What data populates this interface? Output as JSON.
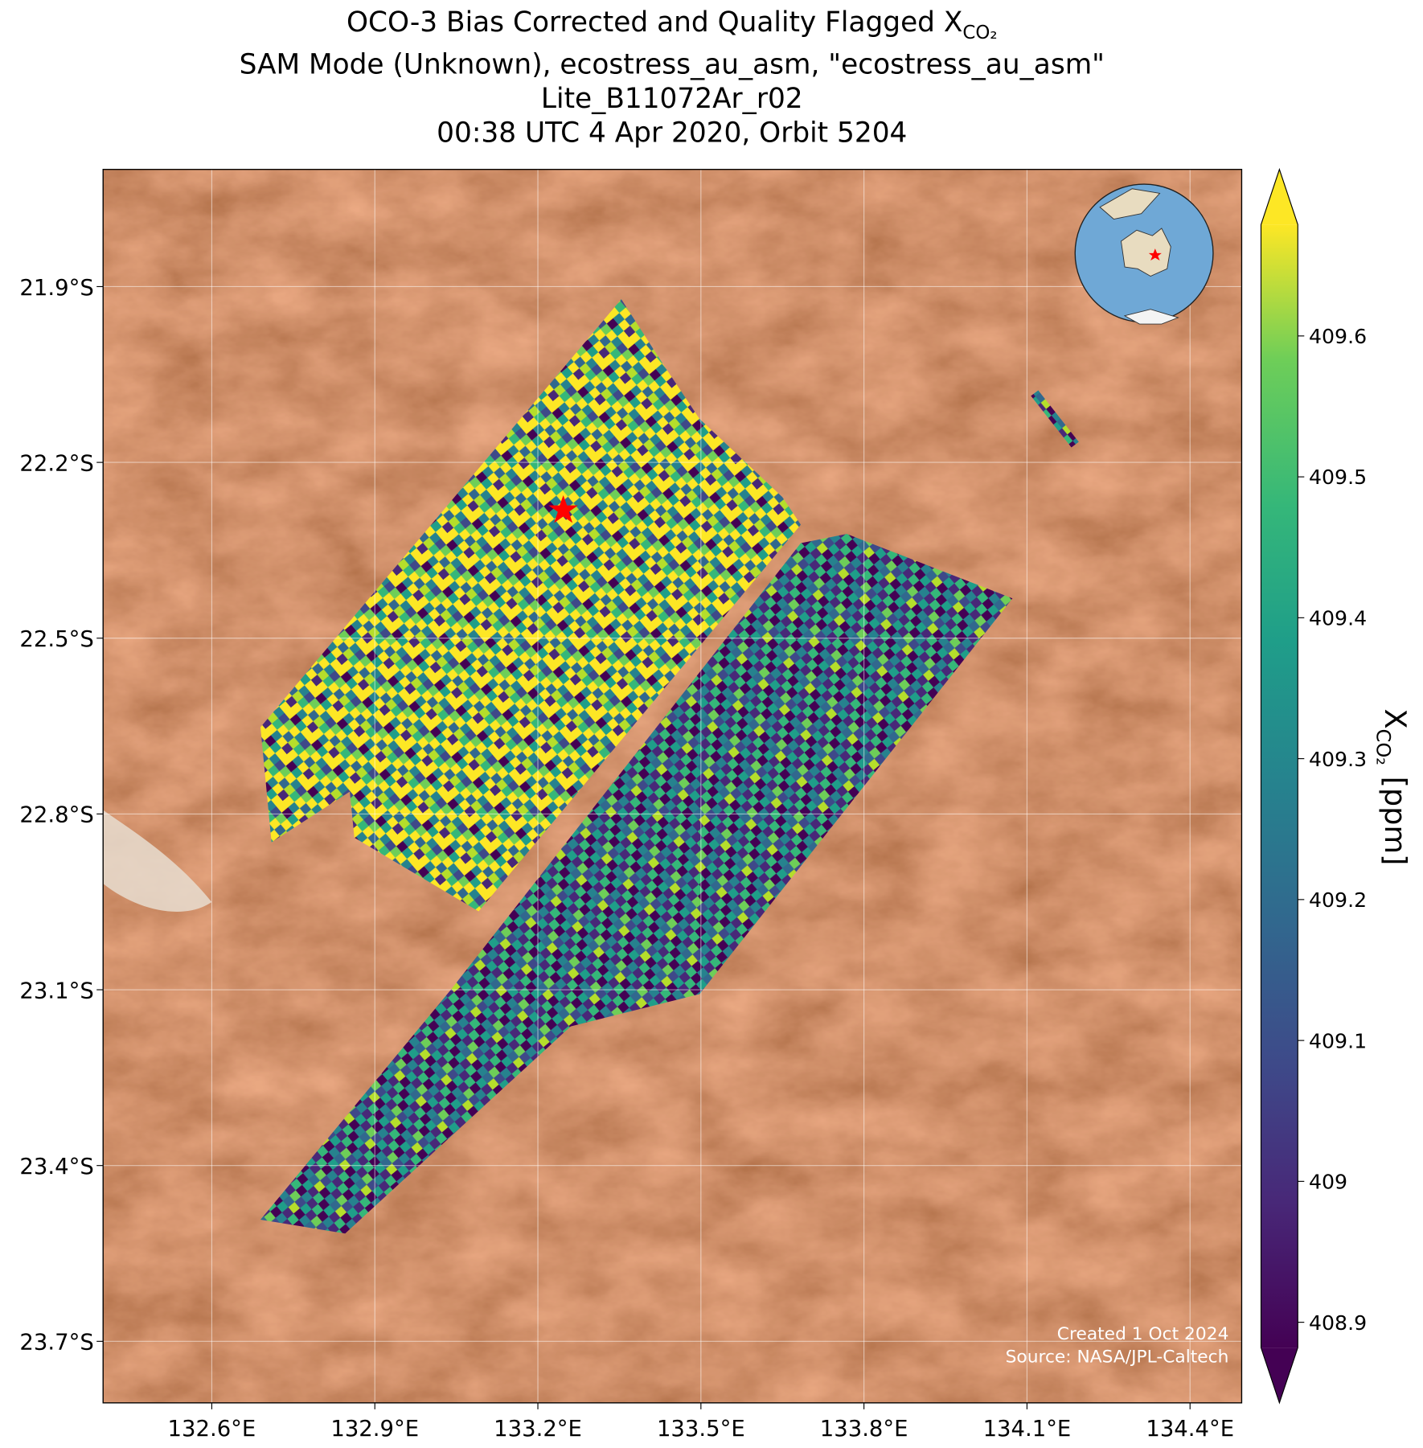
{
  "chart_data": {
    "type": "map",
    "title_lines": [
      "SAM Mode (Unknown), ecostress_au_asm, \"ecostress_au_asm\"",
      "Lite_B11072Ar_r02",
      "00:38 UTC 4 Apr 2020, Orbit 5204"
    ],
    "title_main": "OCO-3 Bias Corrected and Quality Flagged X",
    "title_sub": "CO₂",
    "xlim": [
      132.4,
      134.495
    ],
    "ylim": [
      -23.805,
      -21.7
    ],
    "xticks": [
      {
        "value": 132.6,
        "label": "132.6°E"
      },
      {
        "value": 132.9,
        "label": "132.9°E"
      },
      {
        "value": 133.2,
        "label": "133.2°E"
      },
      {
        "value": 133.5,
        "label": "133.5°E"
      },
      {
        "value": 133.8,
        "label": "133.8°E"
      },
      {
        "value": 134.1,
        "label": "134.1°E"
      },
      {
        "value": 134.4,
        "label": "134.4°E"
      }
    ],
    "yticks": [
      {
        "value": -21.9,
        "label": "21.9°S"
      },
      {
        "value": -22.2,
        "label": "22.2°S"
      },
      {
        "value": -22.5,
        "label": "22.5°S"
      },
      {
        "value": -22.8,
        "label": "22.8°S"
      },
      {
        "value": -23.1,
        "label": "23.1°S"
      },
      {
        "value": -23.4,
        "label": "23.4°S"
      },
      {
        "value": -23.7,
        "label": "23.7°S"
      }
    ],
    "grid": true,
    "colorbar": {
      "label_main": "X",
      "label_sub": "CO₂",
      "label_unit": "[ppm]",
      "lim": [
        408.882,
        409.679
      ],
      "ticks": [
        408.9,
        409.0,
        409.1,
        409.2,
        409.3,
        409.4,
        409.5,
        409.6
      ]
    },
    "credits": [
      "Created 1 Oct 2024",
      "Source: NASA/JPL-Caltech"
    ]
  }
}
